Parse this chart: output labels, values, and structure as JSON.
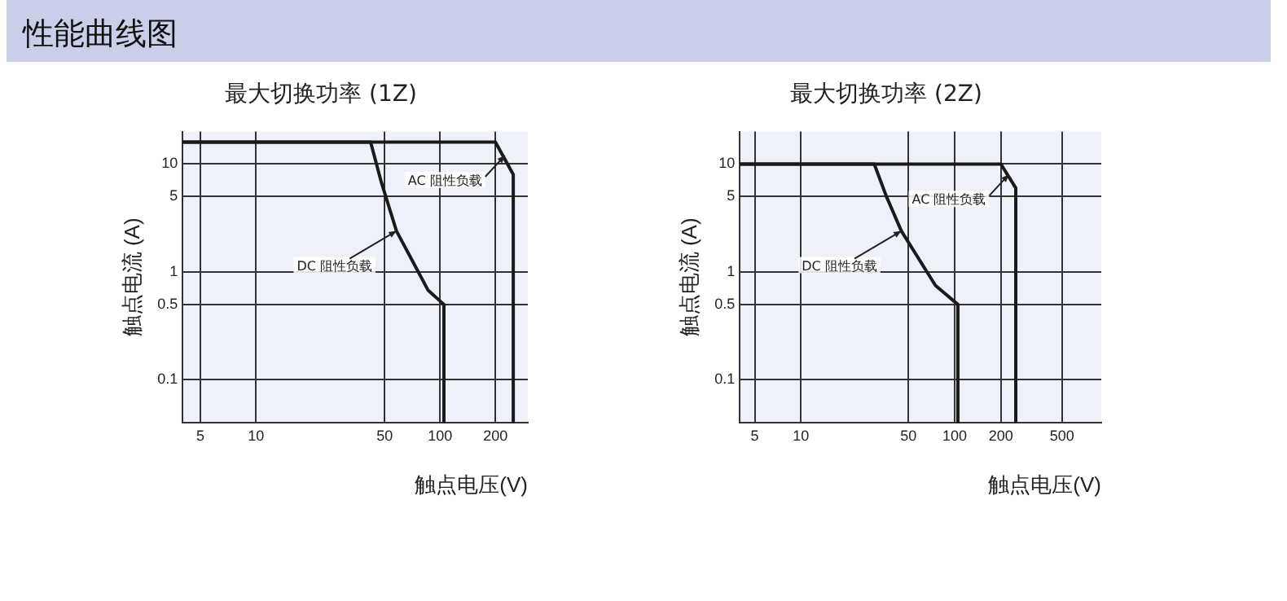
{
  "chart_data": [
    {
      "type": "line",
      "title": "最大切换功率 (1Z)",
      "xlabel": "触点电压(V)",
      "ylabel": "触点电流 (A)",
      "log": "xy",
      "grid": true,
      "legend": false,
      "marker": "none",
      "line_style": "solid",
      "xlim": [
        4,
        300
      ],
      "xticks": [
        5,
        10,
        50,
        100,
        200
      ],
      "ylim": [
        0.04,
        20
      ],
      "yticks": [
        0.1,
        0.5,
        1,
        5,
        10
      ],
      "series": [
        {
          "color": "#1a1a1a",
          "x": [
            4,
            42,
            48,
            58,
            86,
            105,
            105
          ],
          "values": [
            16,
            16,
            6.8,
            2.4,
            0.68,
            0.5,
            0.04
          ]
        },
        {
          "color": "#1a1a1a",
          "x": [
            4,
            200,
            250,
            250
          ],
          "values": [
            16,
            16,
            8,
            0.04
          ]
        }
      ],
      "annotations": [
        "性能曲线图",
        {
          "text": "DC 阻性负载",
          "x": 58,
          "y": 2.4
        },
        {
          "text": "AC 阻性负载",
          "x": 225,
          "y": 12
        }
      ]
    },
    {
      "type": "line",
      "title": "最大切换功率 (2Z)",
      "xlabel": "触点电压(V)",
      "ylabel": "触点电流 (A)",
      "log": "xy",
      "grid": true,
      "legend": false,
      "marker": "none",
      "line_style": "solid",
      "xlim": [
        4,
        900
      ],
      "xticks": [
        5,
        10,
        50,
        100,
        200,
        500
      ],
      "ylim": [
        0.04,
        20
      ],
      "yticks": [
        0.1,
        0.5,
        1,
        5,
        10
      ],
      "series": [
        {
          "color": "#1a1a1a",
          "x": [
            4,
            30,
            36,
            45,
            75,
            105,
            105
          ],
          "values": [
            10,
            10,
            5,
            2.4,
            0.75,
            0.5,
            0.04
          ]
        },
        {
          "color": "#1a1a1a",
          "x": [
            4,
            200,
            250,
            250
          ],
          "values": [
            10,
            10,
            6,
            0.04
          ]
        }
      ],
      "annotations": [
        {
          "text": "DC 阻性负载",
          "x": 45,
          "y": 2.4
        },
        {
          "text": "AC 阻性负载",
          "x": 225,
          "y": 8
        }
      ]
    }
  ]
}
